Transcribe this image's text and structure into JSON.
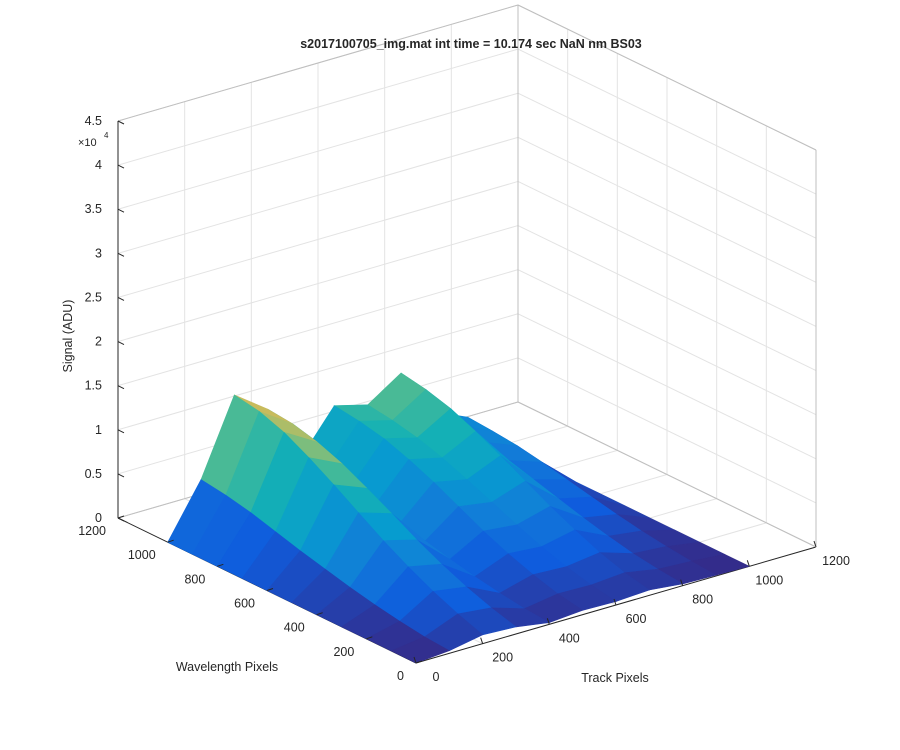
{
  "chart_data": {
    "type": "surface3d",
    "title": "s2017100705_img.mat int time = 10.174 sec  NaN nm BS03",
    "xlabel": "Track Pixels",
    "ylabel": "Wavelength Pixels",
    "zlabel": "Signal (ADU)",
    "z_exponent_label": "×10",
    "z_exponent": "4",
    "xlim": [
      0,
      1200
    ],
    "ylim": [
      0,
      1200
    ],
    "zlim": [
      0,
      45000
    ],
    "x_ticks": [
      "0",
      "200",
      "400",
      "600",
      "800",
      "1000",
      "1200"
    ],
    "y_ticks": [
      "0",
      "200",
      "400",
      "600",
      "800",
      "1000",
      "1200"
    ],
    "z_ticks": [
      "0",
      "0.5",
      "1",
      "1.5",
      "2",
      "2.5",
      "3",
      "3.5",
      "4",
      "4.5"
    ],
    "grid": true,
    "colormap": "parula",
    "colors": {
      "low": "#352a87",
      "mid": "#15b2d3",
      "high": "#f9fb0e"
    },
    "x": [
      0,
      100,
      200,
      300,
      400,
      500,
      600,
      700,
      800,
      900,
      1000
    ],
    "y": [
      0,
      100,
      200,
      300,
      400,
      500,
      600,
      700,
      800,
      900,
      1000
    ],
    "z": [
      [
        0,
        0,
        0,
        0,
        0,
        0,
        0,
        0,
        0,
        0,
        0
      ],
      [
        300,
        500,
        900,
        1400,
        2000,
        2700,
        3400,
        4200,
        5000,
        5600,
        6000
      ],
      [
        1000,
        2000,
        3200,
        4600,
        6200,
        8000,
        9800,
        11500,
        13000,
        14000,
        14500
      ],
      [
        800,
        1600,
        2600,
        3800,
        5200,
        6800,
        8300,
        9700,
        10800,
        11500,
        11800
      ],
      [
        200,
        400,
        800,
        1300,
        1900,
        2600,
        3300,
        4000,
        4600,
        5000,
        5200
      ],
      [
        500,
        1000,
        1800,
        2800,
        4000,
        5400,
        6800,
        8000,
        9000,
        9600,
        10000
      ],
      [
        400,
        900,
        1600,
        2500,
        3600,
        4800,
        6000,
        7100,
        8000,
        8600,
        9000
      ],
      [
        600,
        1200,
        2100,
        3300,
        4600,
        6100,
        7600,
        9000,
        10200,
        11000,
        11500
      ],
      [
        200,
        500,
        900,
        1500,
        2200,
        3000,
        3800,
        4600,
        5300,
        5800,
        6000
      ],
      [
        100,
        300,
        600,
        1000,
        1500,
        2100,
        2700,
        3300,
        3800,
        4100,
        4300
      ],
      [
        0,
        0,
        0,
        0,
        0,
        0,
        0,
        0,
        0,
        0,
        0
      ]
    ]
  }
}
